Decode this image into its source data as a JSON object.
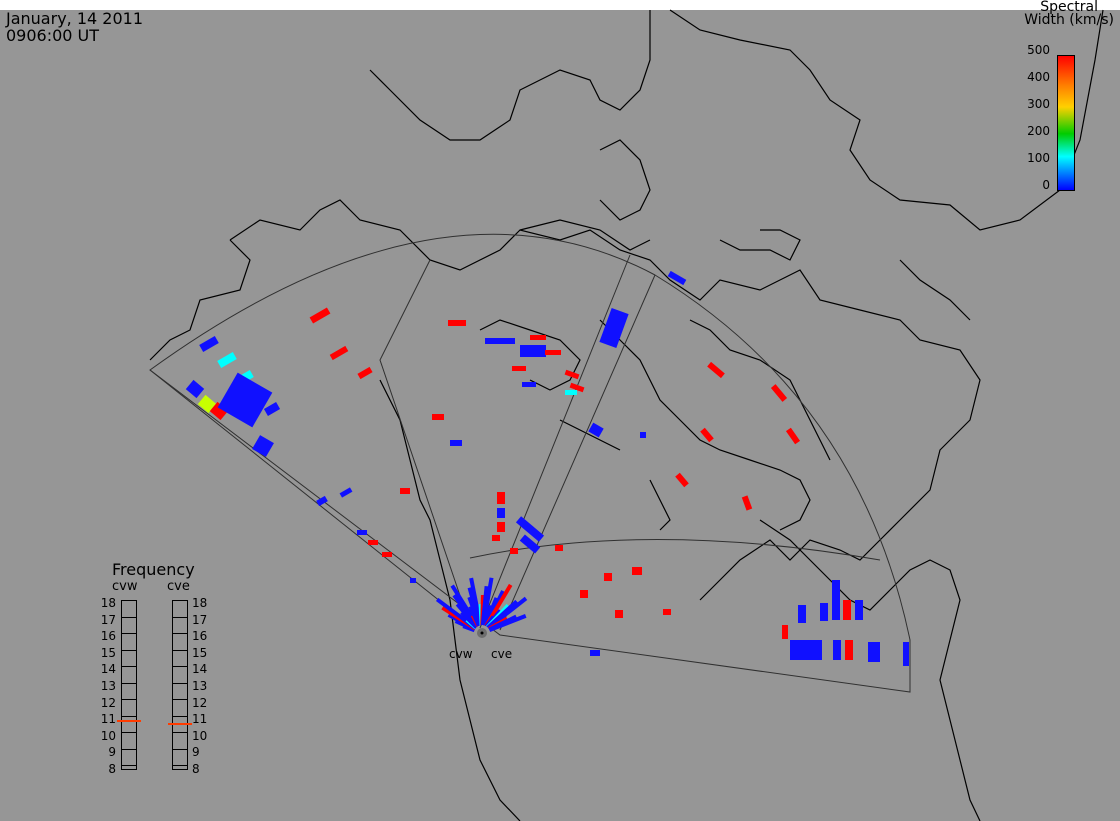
{
  "header": {
    "date": "January, 14 2011",
    "time": "0906:00 UT"
  },
  "colorbar": {
    "title_line1": "Spectral",
    "title_line2": "Width (km/s)",
    "ticks": [
      "500",
      "400",
      "300",
      "200",
      "100",
      "0"
    ],
    "colors": [
      "#ff0000",
      "#ff8000",
      "#ffff00",
      "#00dd00",
      "#00ffff",
      "#0000ff"
    ],
    "range": [
      0,
      500
    ]
  },
  "frequency_panel": {
    "title": "Frequency",
    "radars": [
      {
        "name": "cvw",
        "value_mhz": 10.8
      },
      {
        "name": "cve",
        "value_mhz": 10.6
      }
    ],
    "scale": [
      "18",
      "17",
      "16",
      "15",
      "14",
      "13",
      "12",
      "11",
      "10",
      "9",
      "8"
    ]
  },
  "map": {
    "background": "#969696",
    "site_labels": [
      "cvw",
      "cve"
    ]
  }
}
